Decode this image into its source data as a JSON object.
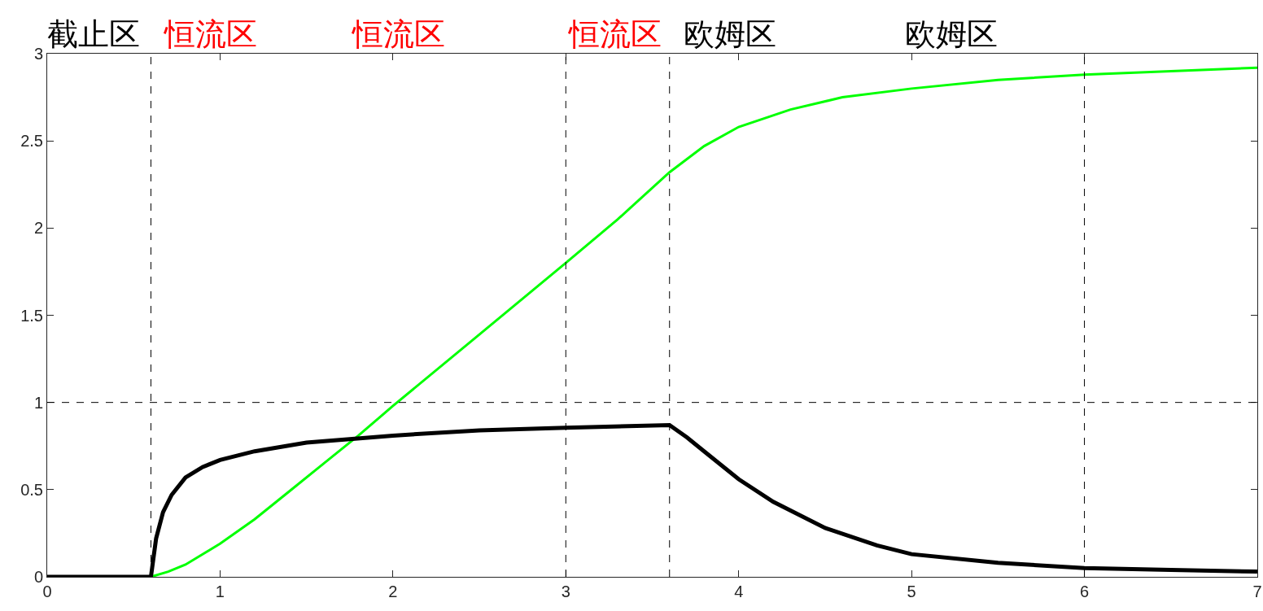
{
  "chart_data": {
    "type": "line",
    "xlim": [
      0,
      7
    ],
    "ylim": [
      0,
      3
    ],
    "xticks": [
      0,
      1,
      2,
      3,
      4,
      5,
      6,
      7
    ],
    "yticks": [
      0,
      0.5,
      1,
      1.5,
      2,
      2.5,
      3
    ],
    "grid": false,
    "line_style": "solid",
    "marker": "none",
    "series": [
      {
        "color": "#00ff00",
        "x": [
          0.6,
          0.7,
          0.8,
          1,
          1.2,
          1.4,
          1.6,
          1.8,
          2,
          2.5,
          3,
          3.3,
          3.6,
          3.8,
          4,
          4.3,
          4.6,
          5,
          5.5,
          6,
          6.5,
          7
        ],
        "values": [
          0,
          0.03,
          0.07,
          0.19,
          0.33,
          0.49,
          0.65,
          0.81,
          0.98,
          1.39,
          1.8,
          2.05,
          2.32,
          2.47,
          2.58,
          2.68,
          2.75,
          2.8,
          2.85,
          2.88,
          2.9,
          2.92
        ]
      },
      {
        "color": "#000000",
        "x": [
          0,
          0.6,
          0.63,
          0.67,
          0.72,
          0.8,
          0.9,
          1,
          1.2,
          1.5,
          2,
          2.5,
          3,
          3.6,
          3.7,
          3.8,
          4,
          4.2,
          4.5,
          4.8,
          5,
          5.5,
          6,
          6.5,
          7
        ],
        "values": [
          0,
          0,
          0.22,
          0.37,
          0.47,
          0.57,
          0.63,
          0.67,
          0.72,
          0.77,
          0.81,
          0.84,
          0.855,
          0.87,
          0.8,
          0.72,
          0.56,
          0.43,
          0.28,
          0.18,
          0.13,
          0.08,
          0.05,
          0.04,
          0.03
        ]
      }
    ],
    "ref_lines": [
      {
        "axis": "x",
        "value": 0.6,
        "line_style": "dashed",
        "color": "#000000"
      },
      {
        "axis": "x",
        "value": 3,
        "line_style": "dashed",
        "color": "#000000"
      },
      {
        "axis": "x",
        "value": 3.6,
        "line_style": "dashed",
        "color": "#000000"
      },
      {
        "axis": "x",
        "value": 6,
        "line_style": "dashed",
        "color": "#000000"
      },
      {
        "axis": "y",
        "value": 1,
        "line_style": "dashed",
        "color": "#000000"
      }
    ],
    "annotations": [
      "截止区",
      "恒流区",
      "恒流区",
      "恒流区",
      "欧姆区",
      "欧姆区"
    ]
  }
}
